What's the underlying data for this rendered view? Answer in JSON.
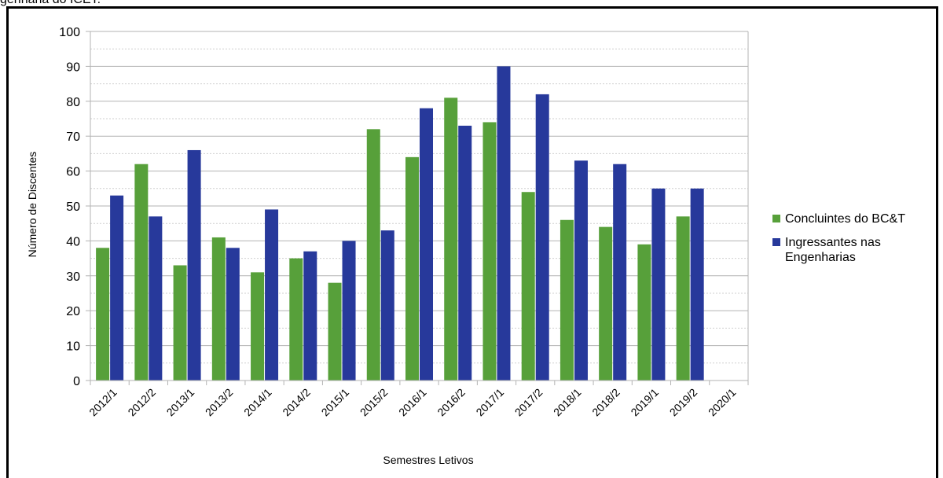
{
  "caption_fragment": "genharia do ICET.",
  "chart_data": {
    "type": "bar",
    "title": "",
    "xlabel": "Semestres Letivos",
    "ylabel": "Número de Discentes",
    "ylim": [
      0,
      100
    ],
    "yticks": [
      0,
      10,
      20,
      30,
      40,
      50,
      60,
      70,
      80,
      90,
      100
    ],
    "grid": true,
    "legend_position": "right",
    "categories": [
      "2012/1",
      "2012/2",
      "2013/1",
      "2013/2",
      "2014/1",
      "2014/2",
      "2015/1",
      "2015/2",
      "2016/1",
      "2016/2",
      "2017/1",
      "2017/2",
      "2018/1",
      "2018/2",
      "2019/1",
      "2019/2",
      "2020/1"
    ],
    "series": [
      {
        "name": "Concluintes do BC&T",
        "color": "#57a03a",
        "values": [
          38,
          62,
          33,
          41,
          31,
          35,
          28,
          72,
          64,
          81,
          74,
          54,
          46,
          44,
          39,
          47,
          null
        ]
      },
      {
        "name": "Ingressantes nas Engenharias",
        "color": "#27399b",
        "values": [
          53,
          47,
          66,
          38,
          49,
          37,
          40,
          43,
          78,
          73,
          90,
          82,
          63,
          62,
          55,
          55,
          null
        ]
      }
    ],
    "legend": {
      "entries": [
        {
          "lines": [
            "Concluintes do BC&T"
          ],
          "color": "#57a03a"
        },
        {
          "lines": [
            "Ingressantes nas",
            "Engenharias"
          ],
          "color": "#27399b"
        }
      ]
    }
  }
}
